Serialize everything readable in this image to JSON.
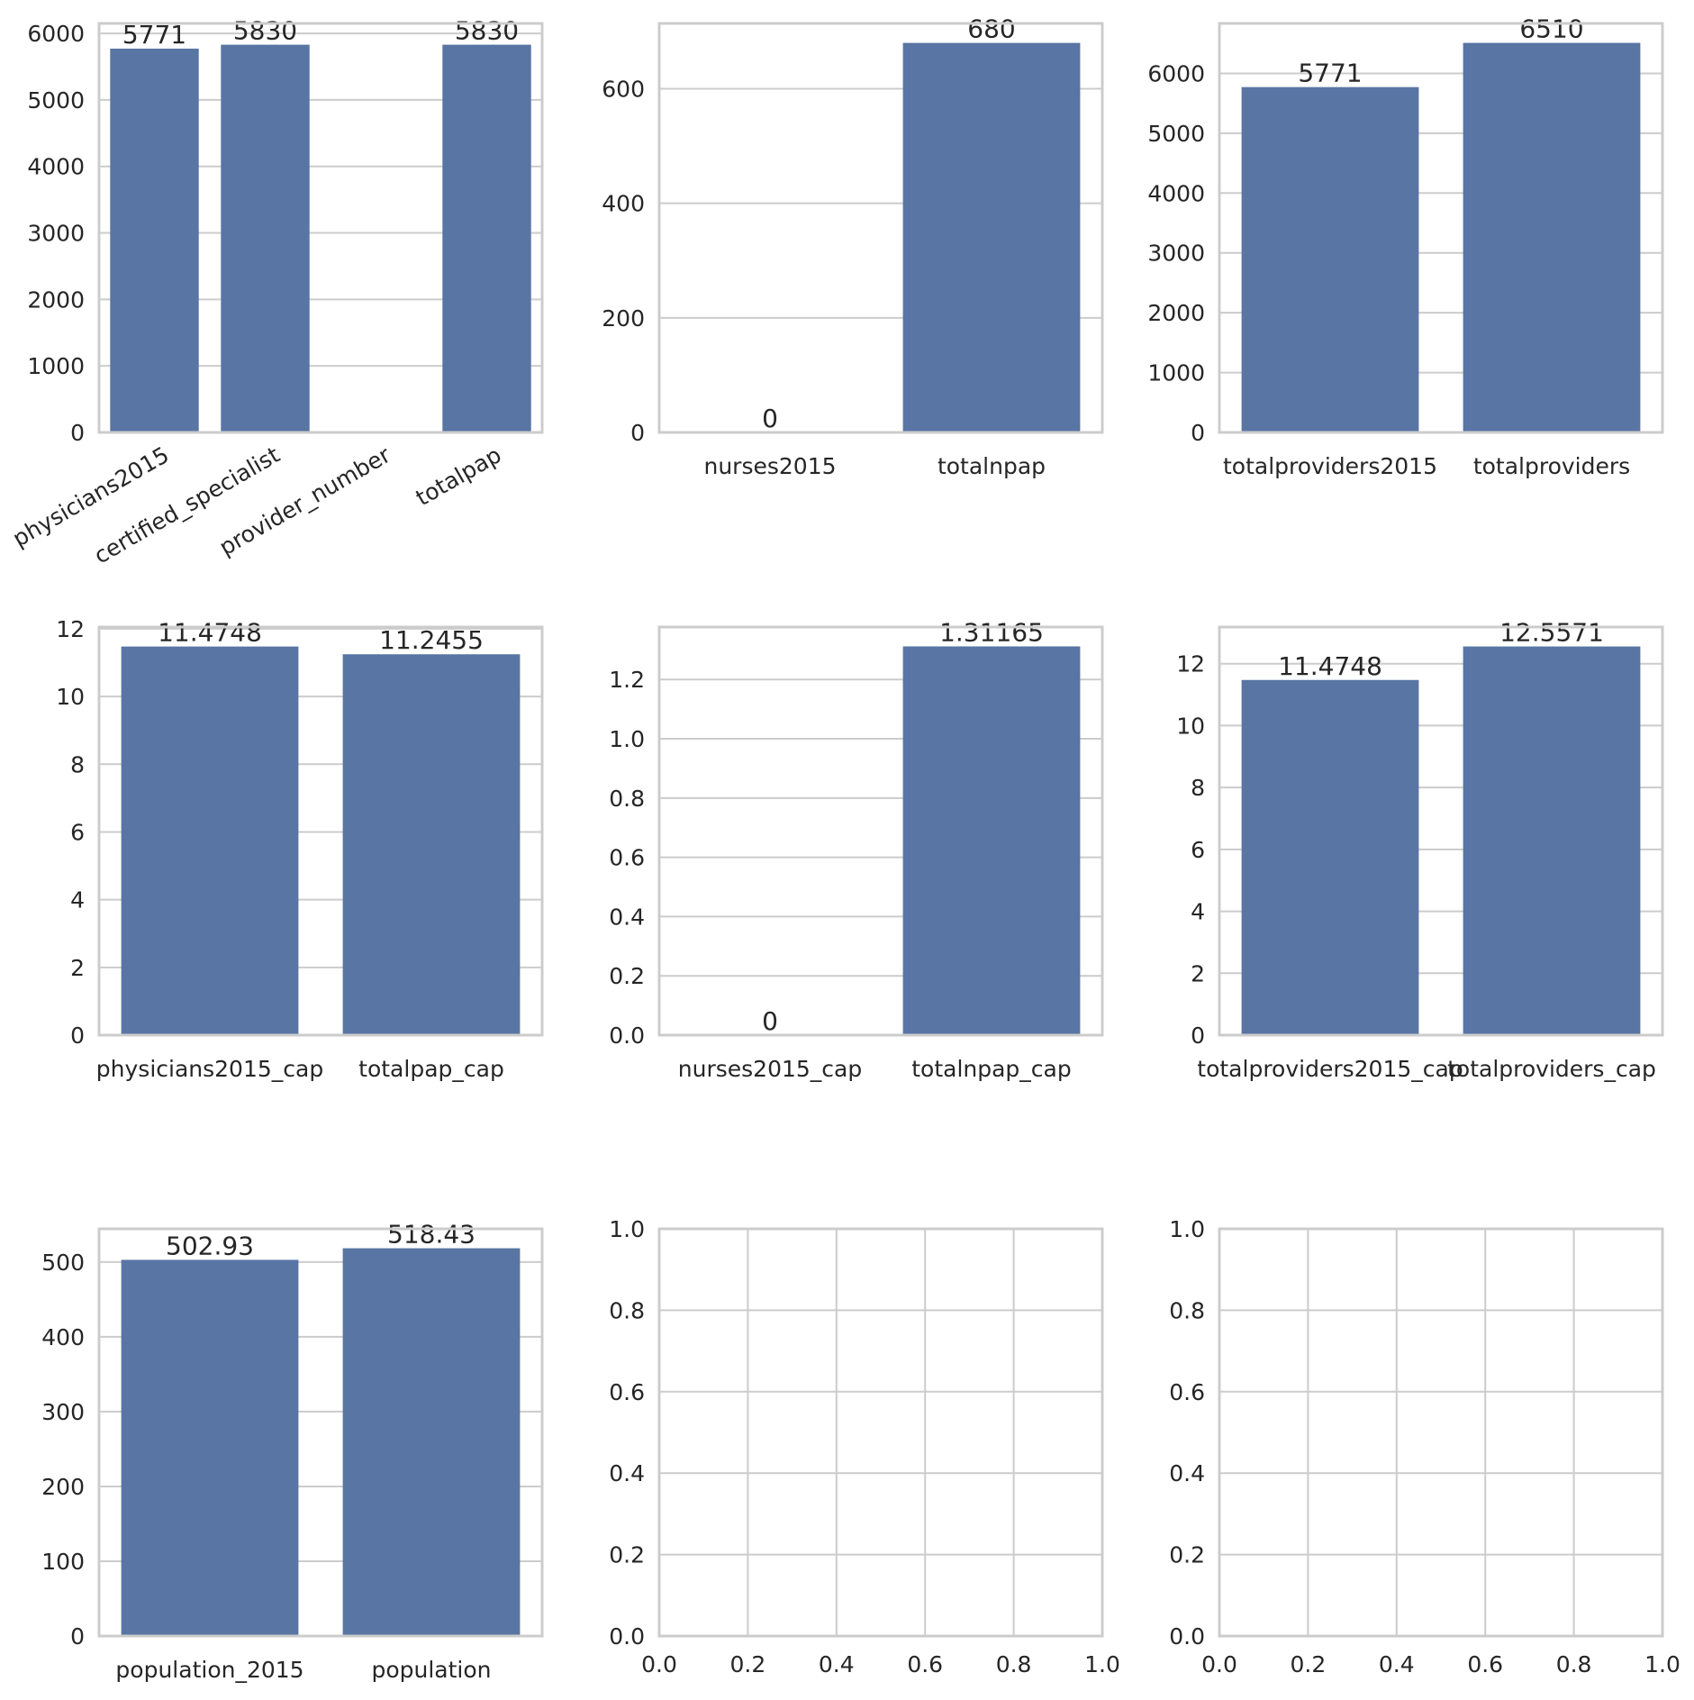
{
  "colors": {
    "bar": "#5975a4",
    "grid": "#cccccc",
    "frame": "#cccccc",
    "text": "#262626",
    "background": "#ffffff"
  },
  "chart_data": [
    {
      "type": "bar",
      "categories": [
        "physicians2015",
        "certified_specialist",
        "provider_number",
        "totalpap"
      ],
      "values": [
        5771,
        5830,
        null,
        5830
      ],
      "data_labels": [
        "5771",
        "5830",
        "",
        "5830"
      ],
      "ylim": [
        0,
        6150
      ],
      "yticks": [
        0,
        1000,
        2000,
        3000,
        4000,
        5000,
        6000
      ],
      "ytick_labels": [
        "0",
        "1000",
        "2000",
        "3000",
        "4000",
        "5000",
        "6000"
      ],
      "xtick_rotation": -30,
      "grid": "y"
    },
    {
      "type": "bar",
      "categories": [
        "nurses2015",
        "totalnpap"
      ],
      "values": [
        0,
        680
      ],
      "data_labels": [
        "0",
        "680"
      ],
      "ylim": [
        0,
        714
      ],
      "yticks": [
        0,
        200,
        400,
        600
      ],
      "ytick_labels": [
        "0",
        "200",
        "400",
        "600"
      ],
      "grid": "y"
    },
    {
      "type": "bar",
      "categories": [
        "totalproviders2015",
        "totalproviders"
      ],
      "values": [
        5771,
        6510
      ],
      "data_labels": [
        "5771",
        "6510"
      ],
      "ylim": [
        0,
        6835
      ],
      "yticks": [
        0,
        1000,
        2000,
        3000,
        4000,
        5000,
        6000
      ],
      "ytick_labels": [
        "0",
        "1000",
        "2000",
        "3000",
        "4000",
        "5000",
        "6000"
      ],
      "grid": "y"
    },
    {
      "type": "bar",
      "categories": [
        "physicians2015_cap",
        "totalpap_cap"
      ],
      "values": [
        11.4748,
        11.2455
      ],
      "data_labels": [
        "11.4748",
        "11.2455"
      ],
      "ylim": [
        0,
        12.05
      ],
      "yticks": [
        0,
        2,
        4,
        6,
        8,
        10,
        12
      ],
      "ytick_labels": [
        "0",
        "2",
        "4",
        "6",
        "8",
        "10",
        "12"
      ],
      "grid": "y"
    },
    {
      "type": "bar",
      "categories": [
        "nurses2015_cap",
        "totalnpap_cap"
      ],
      "values": [
        0,
        1.31165
      ],
      "data_labels": [
        "0",
        "1.31165"
      ],
      "ylim": [
        0,
        1.377
      ],
      "yticks": [
        0,
        0.2,
        0.4,
        0.6,
        0.8,
        1.0,
        1.2
      ],
      "ytick_labels": [
        "0.0",
        "0.2",
        "0.4",
        "0.6",
        "0.8",
        "1.0",
        "1.2"
      ],
      "grid": "y"
    },
    {
      "type": "bar",
      "categories": [
        "totalproviders2015_cap",
        "totalproviders_cap"
      ],
      "values": [
        11.4748,
        12.5571
      ],
      "data_labels": [
        "11.4748",
        "12.5571"
      ],
      "ylim": [
        0,
        13.185
      ],
      "yticks": [
        0,
        2,
        4,
        6,
        8,
        10,
        12
      ],
      "ytick_labels": [
        "0",
        "2",
        "4",
        "6",
        "8",
        "10",
        "12"
      ],
      "grid": "y"
    },
    {
      "type": "bar",
      "categories": [
        "population_2015",
        "population"
      ],
      "values": [
        502.93,
        518.43
      ],
      "data_labels": [
        "502.93",
        "518.43"
      ],
      "ylim": [
        0,
        544.4
      ],
      "yticks": [
        0,
        100,
        200,
        300,
        400,
        500
      ],
      "ytick_labels": [
        "0",
        "100",
        "200",
        "300",
        "400",
        "500"
      ],
      "grid": "y"
    },
    {
      "type": "empty",
      "xlim": [
        0,
        1
      ],
      "ylim": [
        0,
        1
      ],
      "xticks": [
        0,
        0.2,
        0.4,
        0.6,
        0.8,
        1.0
      ],
      "xtick_labels": [
        "0.0",
        "0.2",
        "0.4",
        "0.6",
        "0.8",
        "1.0"
      ],
      "yticks": [
        0,
        0.2,
        0.4,
        0.6,
        0.8,
        1.0
      ],
      "ytick_labels": [
        "0.0",
        "0.2",
        "0.4",
        "0.6",
        "0.8",
        "1.0"
      ],
      "grid": "both"
    },
    {
      "type": "empty",
      "xlim": [
        0,
        1
      ],
      "ylim": [
        0,
        1
      ],
      "xticks": [
        0,
        0.2,
        0.4,
        0.6,
        0.8,
        1.0
      ],
      "xtick_labels": [
        "0.0",
        "0.2",
        "0.4",
        "0.6",
        "0.8",
        "1.0"
      ],
      "yticks": [
        0,
        0.2,
        0.4,
        0.6,
        0.8,
        1.0
      ],
      "ytick_labels": [
        "0.0",
        "0.2",
        "0.4",
        "0.6",
        "0.8",
        "1.0"
      ],
      "grid": "both"
    }
  ]
}
